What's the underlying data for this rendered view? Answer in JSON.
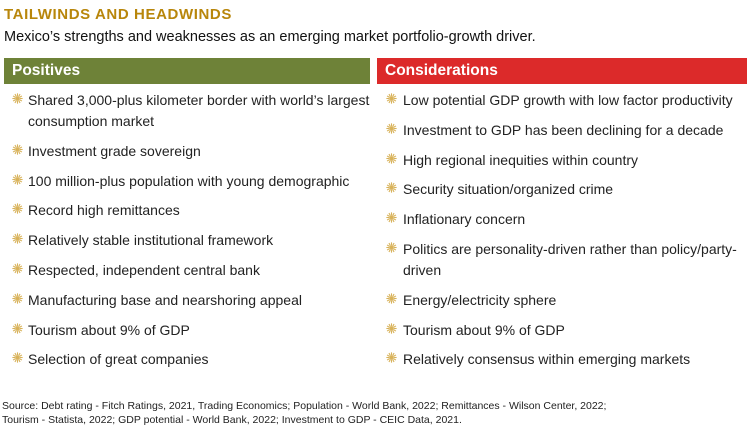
{
  "header": {
    "title": "TAILWINDS AND HEADWINDS",
    "subtitle": "Mexico’s strengths and weaknesses as an emerging market portfolio-growth driver."
  },
  "colors": {
    "title": "#b8860b",
    "positives": "#6e8238",
    "considerations": "#dc2a2a",
    "bullet": "#d8b25a"
  },
  "bullet_icon": "sunburst-icon",
  "positives": {
    "label": "Positives",
    "items": [
      "Shared 3,000-plus kilometer border with world’s largest consumption market",
      "Investment grade sovereign",
      "100 million-plus population with young demographic",
      "Record high remittances",
      "Relatively stable institutional framework",
      "Respected, independent central bank",
      "Manufacturing base and nearshoring appeal",
      "Tourism about 9% of GDP",
      "Selection of great companies"
    ]
  },
  "considerations": {
    "label": "Considerations",
    "items": [
      "Low potential GDP growth with low factor productivity",
      "Investment to GDP has been declining for a decade",
      "High regional inequities within country",
      "Security situation/organized crime",
      "Inflationary concern",
      "Politics are personality-driven rather than policy/party-driven",
      "Energy/electricity sphere",
      "Tourism about 9% of GDP",
      "Relatively consensus within emerging markets"
    ]
  },
  "source": {
    "line1": "Source: Debt rating - Fitch Ratings, 2021, Trading Economics; Population - World Bank, 2022; Remittances - Wilson Center, 2022;",
    "line2": "Tourism - Statista, 2022; GDP potential - World Bank, 2022; Investment to GDP - CEIC Data, 2021."
  }
}
